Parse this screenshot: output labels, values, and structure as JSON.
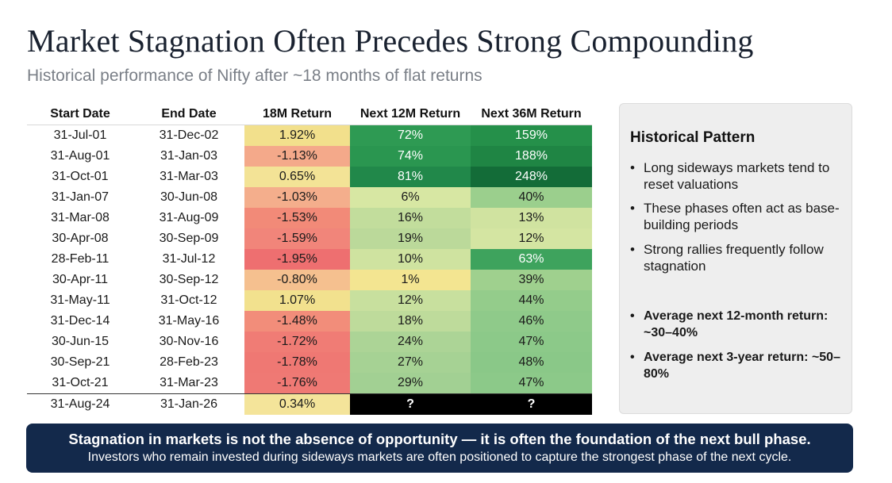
{
  "title": "Market Stagnation Often Precedes Strong Compounding",
  "subtitle": "Historical performance of Nifty after ~18 months of flat returns",
  "table": {
    "headers": [
      "Start Date",
      "End Date",
      "18M Return",
      "Next 12M Return",
      "Next 36M Return"
    ],
    "rows": [
      {
        "start": "31-Jul-01",
        "end": "31-Dec-02",
        "r18": "1.92%",
        "n12": "72%",
        "n36": "159%",
        "c18": "#f2e08c",
        "c12": "#2e9a53",
        "c36": "#25904a",
        "t12": "light",
        "t36": "light"
      },
      {
        "start": "31-Aug-01",
        "end": "31-Jan-03",
        "r18": "-1.13%",
        "n12": "74%",
        "n36": "188%",
        "c18": "#f4a98a",
        "c12": "#2a9650",
        "c36": "#1f8544",
        "t12": "light",
        "t36": "light"
      },
      {
        "start": "31-Oct-01",
        "end": "31-Mar-03",
        "r18": "0.65%",
        "n12": "81%",
        "n36": "248%",
        "c18": "#f3e396",
        "c12": "#21884a",
        "c36": "#136c38",
        "t12": "light",
        "t36": "light"
      },
      {
        "start": "31-Jan-07",
        "end": "30-Jun-08",
        "r18": "-1.03%",
        "n12": "6%",
        "n36": "40%",
        "c18": "#f4ae8c",
        "c12": "#d7e7a3",
        "c36": "#9bcf8d",
        "t12": "",
        "t36": ""
      },
      {
        "start": "31-Mar-08",
        "end": "31-Aug-09",
        "r18": "-1.53%",
        "n12": "16%",
        "n36": "13%",
        "c18": "#f28a78",
        "c12": "#c2dd9c",
        "c36": "#d0e3a0",
        "t12": "",
        "t36": ""
      },
      {
        "start": "30-Apr-08",
        "end": "30-Sep-09",
        "r18": "-1.59%",
        "n12": "19%",
        "n36": "12%",
        "c18": "#f1857a",
        "c12": "#bbd99a",
        "c36": "#d4e5a2",
        "t12": "",
        "t36": ""
      },
      {
        "start": "28-Feb-11",
        "end": "31-Jul-12",
        "r18": "-1.95%",
        "n12": "10%",
        "n36": "63%",
        "c18": "#ee6f70",
        "c12": "#cfe3a0",
        "c36": "#3ea35d",
        "t12": "",
        "t36": "light"
      },
      {
        "start": "30-Apr-11",
        "end": "30-Sep-12",
        "r18": "-0.80%",
        "n12": "1%",
        "n36": "39%",
        "c18": "#f5c08f",
        "c12": "#f3e591",
        "c36": "#9fd08e",
        "t12": "",
        "t36": ""
      },
      {
        "start": "31-May-11",
        "end": "31-Oct-12",
        "r18": "1.07%",
        "n12": "12%",
        "n36": "44%",
        "c18": "#f2e18e",
        "c12": "#c8e09e",
        "c36": "#94cc8b",
        "t12": "",
        "t36": ""
      },
      {
        "start": "31-Dec-14",
        "end": "31-May-16",
        "r18": "-1.48%",
        "n12": "18%",
        "n36": "46%",
        "c18": "#f28d7a",
        "c12": "#bedb9b",
        "c36": "#8fca8a",
        "t12": "",
        "t36": ""
      },
      {
        "start": "30-Jun-15",
        "end": "30-Nov-16",
        "r18": "-1.72%",
        "n12": "24%",
        "n36": "47%",
        "c18": "#f07c75",
        "c12": "#acd496",
        "c36": "#8cc989",
        "t12": "",
        "t36": ""
      },
      {
        "start": "30-Sep-21",
        "end": "28-Feb-23",
        "r18": "-1.78%",
        "n12": "27%",
        "n36": "48%",
        "c18": "#ef7873",
        "c12": "#a6d294",
        "c36": "#8ac888",
        "t12": "",
        "t36": ""
      },
      {
        "start": "31-Oct-21",
        "end": "31-Mar-23",
        "r18": "-1.76%",
        "n12": "29%",
        "n36": "47%",
        "c18": "#ef7974",
        "c12": "#a2d093",
        "c36": "#8cc989",
        "t12": "",
        "t36": ""
      },
      {
        "start": "31-Aug-24",
        "end": "31-Jan-26",
        "r18": "0.34%",
        "n12": "?",
        "n36": "?",
        "c18": "#f4e49a",
        "c12": "#000000",
        "c36": "#000000",
        "t12": "light",
        "t36": "light"
      }
    ]
  },
  "panel": {
    "title": "Historical Pattern",
    "points": [
      "Long sideways markets tend to reset valuations",
      "These phases often act as base-building periods",
      "Strong rallies frequently follow stagnation"
    ],
    "stats": [
      "Average next 12-month return: ~30–40%",
      "Average next 3-year return: ~50–80%"
    ]
  },
  "banner": {
    "main": "Stagnation in markets is not the absence of opportunity — it is often the foundation of the next bull phase.",
    "sub": "Investors who remain invested during sideways markets are often positioned to capture the strongest phase of the next cycle."
  }
}
